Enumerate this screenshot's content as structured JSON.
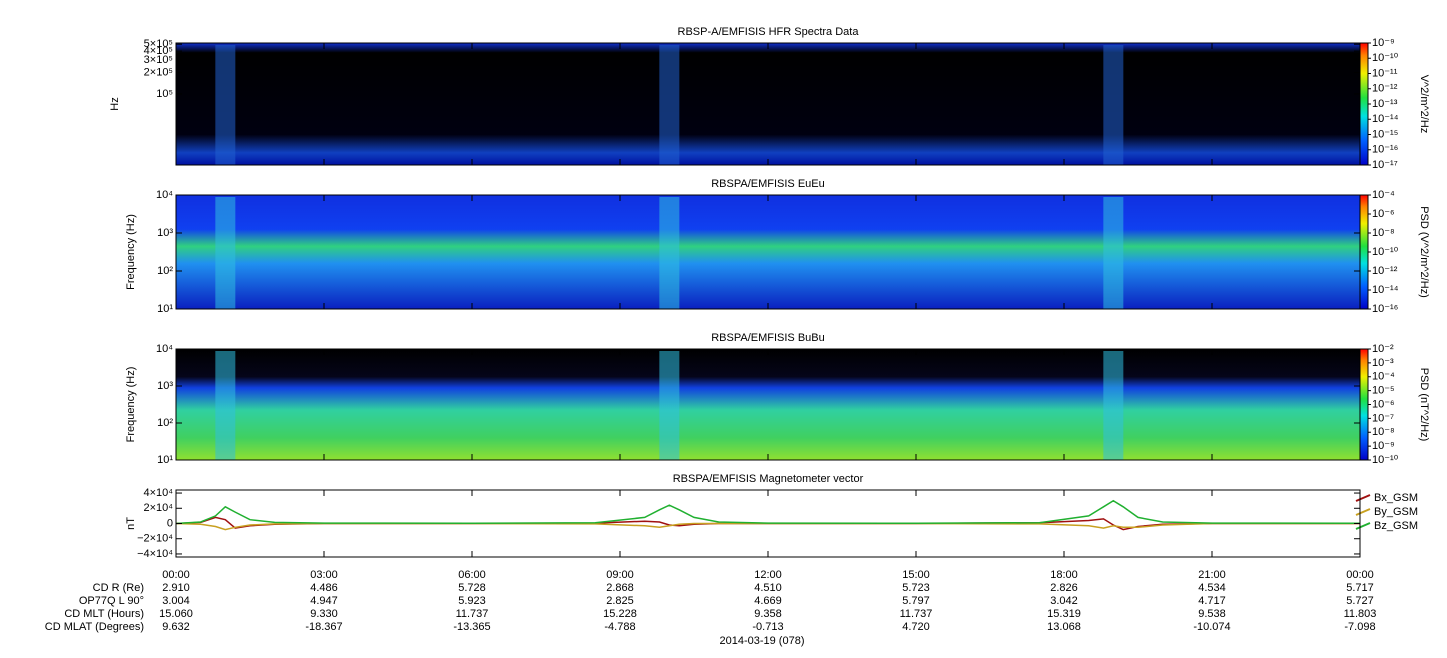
{
  "chart_data": [
    {
      "type": "spectrogram",
      "title": "RBSP-A/EMFISIS  HFR Spectra Data",
      "y_label": "Hz",
      "ylog": true,
      "xlim": [
        0,
        24
      ],
      "ylim": [
        10000,
        520000
      ],
      "yticks": [
        {
          "value": 500000,
          "label": "5×10⁵"
        },
        {
          "value": 400000,
          "label": "4×10⁵"
        },
        {
          "value": 300000,
          "label": "3×10⁵"
        },
        {
          "value": 200000,
          "label": "2×10⁵"
        },
        {
          "value": 100000,
          "label": "10⁵"
        }
      ],
      "z_label": "V^2/m^2/Hz",
      "zlog": true,
      "zlim": [
        1e-17,
        1e-09
      ],
      "zticks": [
        {
          "value": 1e-09,
          "label": "10⁻⁹"
        },
        {
          "value": 1e-10,
          "label": "10⁻¹⁰"
        },
        {
          "value": 1e-11,
          "label": "10⁻¹¹"
        },
        {
          "value": 1e-12,
          "label": "10⁻¹²"
        },
        {
          "value": 1e-13,
          "label": "10⁻¹³"
        },
        {
          "value": 1e-14,
          "label": "10⁻¹⁴"
        },
        {
          "value": 1e-15,
          "label": "10⁻¹⁵"
        },
        {
          "value": 1e-16,
          "label": "10⁻¹⁶"
        },
        {
          "value": 1e-17,
          "label": "10⁻¹⁷"
        }
      ]
    },
    {
      "type": "spectrogram",
      "title": "RBSPA/EMFISIS  EuEu",
      "y_label": "Frequency (Hz)",
      "ylog": true,
      "xlim": [
        0,
        24
      ],
      "ylim": [
        10,
        10000
      ],
      "yticks": [
        {
          "value": 10,
          "label": "10¹"
        },
        {
          "value": 100,
          "label": "10²"
        },
        {
          "value": 1000,
          "label": "10³"
        },
        {
          "value": 10000,
          "label": "10⁴"
        }
      ],
      "z_label": "PSD (V^2/m^2/Hz)",
      "zlog": true,
      "zlim": [
        1e-16,
        0.0001
      ],
      "zticks": [
        {
          "value": 0.0001,
          "label": "10⁻⁴"
        },
        {
          "value": 1e-06,
          "label": "10⁻⁶"
        },
        {
          "value": 1e-08,
          "label": "10⁻⁸"
        },
        {
          "value": 1e-10,
          "label": "10⁻¹⁰"
        },
        {
          "value": 1e-12,
          "label": "10⁻¹²"
        },
        {
          "value": 1e-14,
          "label": "10⁻¹⁴"
        },
        {
          "value": 1e-16,
          "label": "10⁻¹⁶"
        }
      ]
    },
    {
      "type": "spectrogram",
      "title": "RBSPA/EMFISIS  BuBu",
      "y_label": "Frequency (Hz)",
      "ylog": true,
      "xlim": [
        0,
        24
      ],
      "ylim": [
        10,
        10000
      ],
      "yticks": [
        {
          "value": 10,
          "label": "10¹"
        },
        {
          "value": 100,
          "label": "10²"
        },
        {
          "value": 1000,
          "label": "10³"
        },
        {
          "value": 10000,
          "label": "10⁴"
        }
      ],
      "z_label": "PSD (nT^2/Hz)",
      "zlog": true,
      "zlim": [
        1e-10,
        0.01
      ],
      "zticks": [
        {
          "value": 0.01,
          "label": "10⁻²"
        },
        {
          "value": 0.001,
          "label": "10⁻³"
        },
        {
          "value": 0.0001,
          "label": "10⁻⁴"
        },
        {
          "value": 1e-05,
          "label": "10⁻⁵"
        },
        {
          "value": 1e-06,
          "label": "10⁻⁶"
        },
        {
          "value": 1e-07,
          "label": "10⁻⁷"
        },
        {
          "value": 1e-08,
          "label": "10⁻⁸"
        },
        {
          "value": 1e-09,
          "label": "10⁻⁹"
        },
        {
          "value": 1e-10,
          "label": "10⁻¹⁰"
        }
      ]
    },
    {
      "type": "line",
      "title": "RBSPA/EMFISIS  Magnetometer vector",
      "y_label": "nT",
      "legend": "right",
      "xlim": [
        0,
        24
      ],
      "ylim": [
        -44000,
        44000
      ],
      "xticks": [
        {
          "value": 0,
          "label": "00:00"
        },
        {
          "value": 3,
          "label": "03:00"
        },
        {
          "value": 6,
          "label": "06:00"
        },
        {
          "value": 9,
          "label": "09:00"
        },
        {
          "value": 12,
          "label": "12:00"
        },
        {
          "value": 15,
          "label": "15:00"
        },
        {
          "value": 18,
          "label": "18:00"
        },
        {
          "value": 21,
          "label": "21:00"
        },
        {
          "value": 24,
          "label": "00:00"
        }
      ],
      "yticks": [
        {
          "value": 40000,
          "label": "4×10⁴"
        },
        {
          "value": 20000,
          "label": "2×10⁴"
        },
        {
          "value": 0,
          "label": "0"
        },
        {
          "value": -20000,
          "label": "−2×10⁴"
        },
        {
          "value": -40000,
          "label": "−4×10⁴"
        }
      ],
      "x": [
        0,
        0.5,
        0.8,
        1.0,
        1.2,
        1.5,
        2,
        3,
        6,
        8.5,
        9.5,
        9.8,
        10,
        10.2,
        10.5,
        11,
        12,
        15,
        17.5,
        18.5,
        18.8,
        19,
        19.2,
        19.5,
        20,
        21,
        24
      ],
      "series": [
        {
          "name": "Bx_GSM",
          "color": "#a01010",
          "values": [
            0,
            1500,
            8000,
            5000,
            -6000,
            -3000,
            -1000,
            0,
            0,
            500,
            3000,
            2000,
            -2000,
            -3000,
            -1000,
            0,
            0,
            0,
            1000,
            4000,
            6000,
            -2000,
            -8000,
            -4000,
            -1000,
            0,
            0
          ]
        },
        {
          "name": "By_GSM",
          "color": "#c8a020",
          "values": [
            0,
            -1000,
            -4000,
            -8000,
            -5000,
            -2000,
            -500,
            0,
            0,
            -500,
            -3000,
            -5000,
            -3000,
            -1000,
            0,
            0,
            0,
            0,
            -500,
            -3000,
            -6000,
            -3000,
            -5000,
            -5000,
            -2000,
            0,
            0
          ]
        },
        {
          "name": "Bz_GSM",
          "color": "#20b030",
          "values": [
            0,
            2000,
            10000,
            22000,
            15000,
            5000,
            1500,
            500,
            200,
            1000,
            8000,
            18000,
            24000,
            18000,
            8000,
            2000,
            500,
            200,
            1000,
            10000,
            22000,
            30000,
            22000,
            8000,
            2000,
            500,
            200
          ]
        }
      ]
    }
  ],
  "ephemeris": {
    "rows": [
      {
        "label": "CD R (Re)",
        "values": [
          "2.910",
          "4.486",
          "5.728",
          "2.868",
          "4.510",
          "5.723",
          "2.826",
          "4.534",
          "5.717"
        ]
      },
      {
        "label": "OP77Q L 90°",
        "values": [
          "3.004",
          "4.947",
          "5.923",
          "2.825",
          "4.669",
          "5.797",
          "3.042",
          "4.717",
          "5.727"
        ]
      },
      {
        "label": "CD MLT (Hours)",
        "values": [
          "15.060",
          "9.330",
          "11.737",
          "15.228",
          "9.358",
          "11.737",
          "15.319",
          "9.538",
          "11.803"
        ]
      },
      {
        "label": "CD MLAT (Degrees)",
        "values": [
          "9.632",
          "-18.367",
          "-13.365",
          "-4.788",
          "-0.713",
          "4.720",
          "13.068",
          "-10.074",
          "-7.098"
        ]
      }
    ],
    "date": "2014-03-19 (078)"
  }
}
